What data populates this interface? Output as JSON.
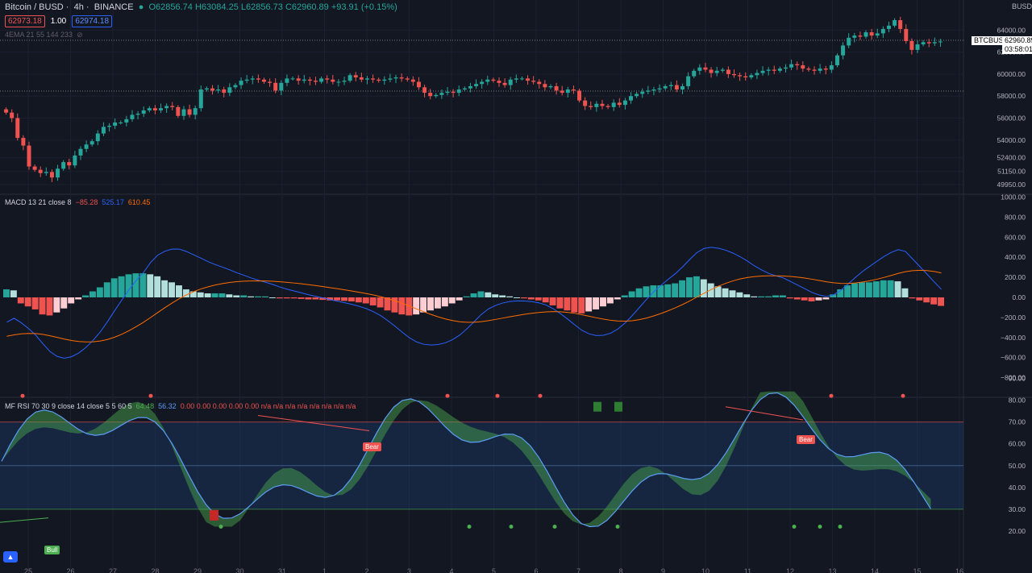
{
  "header": {
    "symbol": "Bitcoin / BUSD",
    "interval": "4h",
    "exchange": "BINANCE",
    "ohlc_o": "O62856.74",
    "ohlc_h": "H63084.25",
    "ohlc_l": "L62856.73",
    "ohlc_c": "C62960.89",
    "change": "+93.91 (+0.15%)",
    "sell_price": "62973.18",
    "spread": "1.00",
    "buy_price": "62974.18",
    "ema_label": "4EMA 21 55 144 233"
  },
  "currency": "BUSD",
  "last_price": {
    "ticker": "BTCBUSD",
    "value": "62960.89",
    "countdown": "03:58:01"
  },
  "macd": {
    "label": "MACD 13 21 close 8",
    "hist": "−85.28",
    "macd": "525.17",
    "signal": "610.45"
  },
  "mfrsi": {
    "label": "MF RSI 70 30 9 close 14 close 5 5 60 5",
    "v1": "64.48",
    "v2": "56.32",
    "rest": "0.00 0.00 0.00 0.00 0.00 n/a n/a n/a n/a n/a n/a n/a n/a"
  },
  "labels": {
    "bear1": "Bear",
    "bear2": "Bear",
    "bull": "Bull"
  },
  "colors": {
    "up": "#26a69a",
    "down": "#ef5350",
    "bg": "#131722",
    "macd": "#2962ff",
    "signal": "#ff6d00"
  },
  "chart_data": [
    {
      "type": "candlestick",
      "ylabel": "BUSD",
      "yticks": [
        49950,
        51150,
        52400,
        54000,
        56000,
        58000,
        60000,
        62000,
        64000
      ],
      "ylim": [
        49300,
        66000
      ],
      "xticks": [
        "25",
        "26",
        "27",
        "28",
        "29",
        "30",
        "31",
        "1",
        "2",
        "3",
        "4",
        "5",
        "6",
        "7",
        "8",
        "9",
        "10",
        "11",
        "12",
        "13",
        "14",
        "15",
        "16"
      ],
      "close": [
        56500,
        56000,
        54200,
        53500,
        51600,
        51300,
        51000,
        51100,
        50600,
        51400,
        52000,
        51700,
        52600,
        53200,
        53600,
        53900,
        54600,
        55200,
        55300,
        55600,
        55600,
        55900,
        56300,
        56400,
        56700,
        56900,
        56700,
        56900,
        57100,
        57000,
        56200,
        56800,
        56300,
        56900,
        58600,
        58700,
        58500,
        58600,
        58300,
        58800,
        59000,
        59400,
        59500,
        59600,
        59500,
        59300,
        59200,
        58500,
        59200,
        59600,
        59600,
        59400,
        59500,
        59400,
        59300,
        59600,
        59500,
        59300,
        59300,
        59400,
        59900,
        59700,
        59500,
        59600,
        59500,
        59400,
        59500,
        59600,
        59700,
        59600,
        59500,
        59300,
        58800,
        58300,
        58000,
        58100,
        58300,
        58400,
        58300,
        58600,
        58700,
        58900,
        59100,
        59300,
        59500,
        59400,
        59200,
        59000,
        59500,
        59600,
        59600,
        59400,
        59300,
        59100,
        58800,
        58900,
        58500,
        58300,
        58600,
        58500,
        57600,
        57100,
        57000,
        57300,
        57100,
        57000,
        57400,
        57200,
        57600,
        58000,
        58200,
        58400,
        58500,
        58600,
        58700,
        58900,
        59000,
        58600,
        58900,
        59800,
        60300,
        60600,
        60400,
        60100,
        60300,
        60400,
        60000,
        59900,
        59800,
        59700,
        59900,
        60100,
        60300,
        60400,
        60300,
        60500,
        60600,
        60900,
        60800,
        60500,
        60400,
        60300,
        60500,
        60400,
        60800,
        61700,
        62600,
        63300,
        63500,
        63400,
        63800,
        63500,
        63700,
        64100,
        64400,
        64900,
        64100,
        63000,
        62200,
        62700,
        62900,
        62800,
        62900,
        62960
      ],
      "macd_hist": [
        80,
        70,
        -60,
        -90,
        -120,
        -170,
        -180,
        -150,
        -110,
        -60,
        -20,
        20,
        60,
        100,
        150,
        190,
        210,
        230,
        240,
        240,
        230,
        210,
        170,
        150,
        120,
        80,
        60,
        50,
        40,
        40,
        40,
        30,
        20,
        20,
        10,
        10,
        10,
        0,
        -10,
        -10,
        -10,
        -15,
        -20,
        -20,
        -25,
        -30,
        -30,
        -35,
        -40,
        -50,
        -60,
        -80,
        -100,
        -130,
        -150,
        -170,
        -180,
        -170,
        -150,
        -130,
        -110,
        -90,
        -60,
        -30,
        10,
        40,
        60,
        50,
        30,
        20,
        10,
        0,
        -10,
        -20,
        -30,
        -50,
        -80,
        -110,
        -130,
        -150,
        -160,
        -140,
        -120,
        -90,
        -60,
        -20,
        20,
        60,
        90,
        110,
        120,
        120,
        130,
        140,
        170,
        200,
        210,
        180,
        140,
        110,
        90,
        70,
        50,
        30,
        10,
        10,
        10,
        20,
        20,
        -10,
        -20,
        -30,
        -40,
        -30,
        -20,
        30,
        80,
        120,
        140,
        150,
        150,
        160,
        170,
        170,
        160,
        90,
        -10,
        -30,
        -50,
        -70,
        -85
      ]
    }
  ]
}
